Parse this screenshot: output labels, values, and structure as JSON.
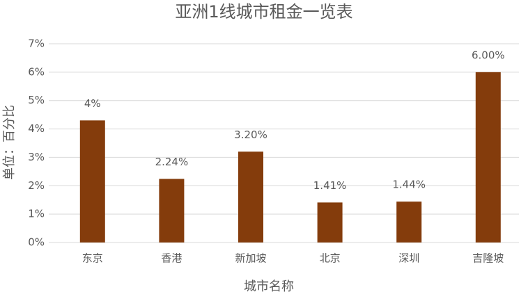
{
  "chart_data": {
    "type": "bar",
    "title": "亚洲1线城市租金一览表",
    "x_label": "城市名称",
    "y_label": "单位：百分比",
    "categories": [
      "东京",
      "香港",
      "新加坡",
      "北京",
      "深圳",
      "吉隆坡"
    ],
    "values": [
      4.3,
      2.24,
      3.2,
      1.41,
      1.44,
      6.0
    ],
    "value_labels": [
      "4%",
      "2.24%",
      "3.20%",
      "1.41%",
      "1.44%",
      "6.00%"
    ],
    "color": "#843c0c",
    "ylim": [
      0,
      7
    ],
    "yticks": [
      {
        "value": 0,
        "label": "0%"
      },
      {
        "value": 1,
        "label": "1%"
      },
      {
        "value": 2,
        "label": "2%"
      },
      {
        "value": 3,
        "label": "3%"
      },
      {
        "value": 4,
        "label": "4%"
      },
      {
        "value": 5,
        "label": "5%"
      },
      {
        "value": 6,
        "label": "6%"
      },
      {
        "value": 7,
        "label": "7%"
      }
    ],
    "grid": true
  }
}
